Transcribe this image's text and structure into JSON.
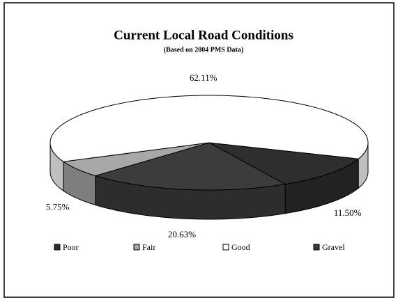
{
  "chart_data": {
    "type": "pie3d",
    "title": "Current Local Road Conditions",
    "subtitle": "(Based on 2004 PMS Data)",
    "categories": [
      "Poor",
      "Fair",
      "Good",
      "Gravel"
    ],
    "values": [
      11.5,
      5.75,
      62.11,
      20.63
    ],
    "value_labels": [
      "11.50%",
      "5.75%",
      "62.11%",
      "20.63%"
    ],
    "colors": [
      "#2e2e2e",
      "#a8a8a8",
      "#ffffff",
      "#3c3c3c"
    ],
    "legend": "bottom"
  }
}
